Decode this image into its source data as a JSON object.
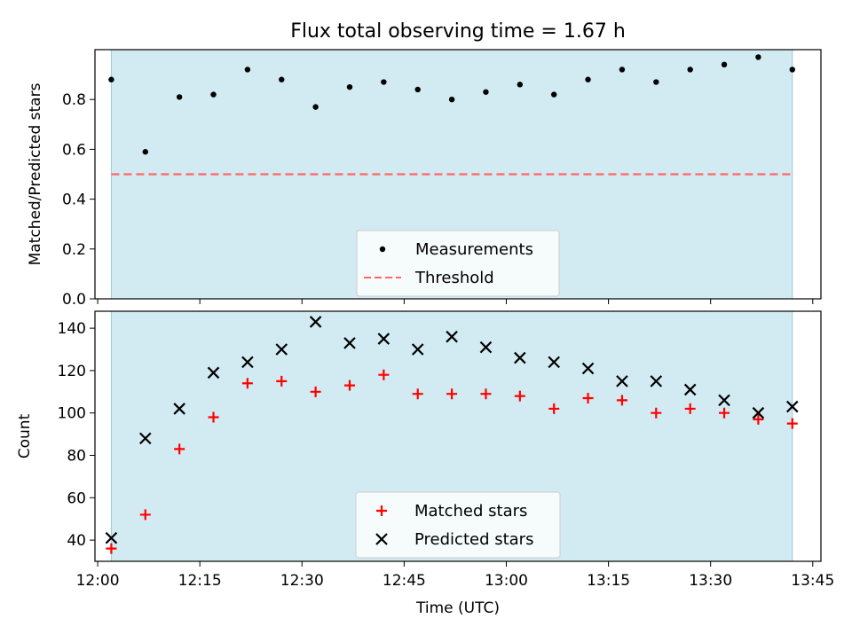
{
  "title": "Flux total observing time = 1.67 h",
  "colors": {
    "shade": "#add8e6",
    "threshold": "#ff6666",
    "matched": "#ff0000",
    "predicted": "#000000",
    "measurement": "#000000"
  },
  "chart_data": [
    {
      "type": "scatter",
      "title": "Flux total observing time = 1.67 h",
      "xlabel": "",
      "ylabel": "Matched/Predicted stars",
      "xlim": [
        "12:00",
        "13:45"
      ],
      "ylim": [
        0,
        1.0
      ],
      "yticks": [
        "0.0",
        "0.2",
        "0.4",
        "0.6",
        "0.8"
      ],
      "shaded_span": [
        "12:02",
        "13:42"
      ],
      "legend_position": "bottom-center",
      "series": [
        {
          "name": "Measurements",
          "marker": "dot",
          "x": [
            "12:02",
            "12:07",
            "12:12",
            "12:17",
            "12:22",
            "12:27",
            "12:32",
            "12:37",
            "12:42",
            "12:47",
            "12:52",
            "12:57",
            "13:02",
            "13:07",
            "13:12",
            "13:17",
            "13:22",
            "13:27",
            "13:32",
            "13:37",
            "13:42"
          ],
          "y": [
            0.88,
            0.59,
            0.81,
            0.82,
            0.92,
            0.88,
            0.77,
            0.85,
            0.87,
            0.84,
            0.8,
            0.83,
            0.86,
            0.82,
            0.88,
            0.92,
            0.87,
            0.92,
            0.94,
            0.97,
            0.92
          ]
        }
      ],
      "threshold": {
        "name": "Threshold",
        "value": 0.5
      }
    },
    {
      "type": "scatter",
      "xlabel": "Time (UTC)",
      "ylabel": "Count",
      "xlim": [
        "12:00",
        "13:45"
      ],
      "ylim": [
        30,
        148
      ],
      "xticks": [
        "12:00",
        "12:15",
        "12:30",
        "12:45",
        "13:00",
        "13:15",
        "13:30",
        "13:45"
      ],
      "yticks": [
        "40",
        "60",
        "80",
        "100",
        "120",
        "140"
      ],
      "shaded_span": [
        "12:02",
        "13:42"
      ],
      "legend_position": "bottom-center",
      "x": [
        "12:02",
        "12:07",
        "12:12",
        "12:17",
        "12:22",
        "12:27",
        "12:32",
        "12:37",
        "12:42",
        "12:47",
        "12:52",
        "12:57",
        "13:02",
        "13:07",
        "13:12",
        "13:17",
        "13:22",
        "13:27",
        "13:32",
        "13:37",
        "13:42"
      ],
      "series": [
        {
          "name": "Matched stars",
          "marker": "plus",
          "values": [
            36,
            52,
            83,
            98,
            114,
            115,
            110,
            113,
            118,
            109,
            109,
            109,
            108,
            102,
            107,
            106,
            100,
            102,
            100,
            97,
            95
          ]
        },
        {
          "name": "Predicted stars",
          "marker": "x",
          "values": [
            41,
            88,
            102,
            119,
            124,
            130,
            143,
            133,
            135,
            130,
            136,
            131,
            126,
            124,
            121,
            115,
            115,
            111,
            106,
            100,
            103
          ]
        }
      ]
    }
  ]
}
